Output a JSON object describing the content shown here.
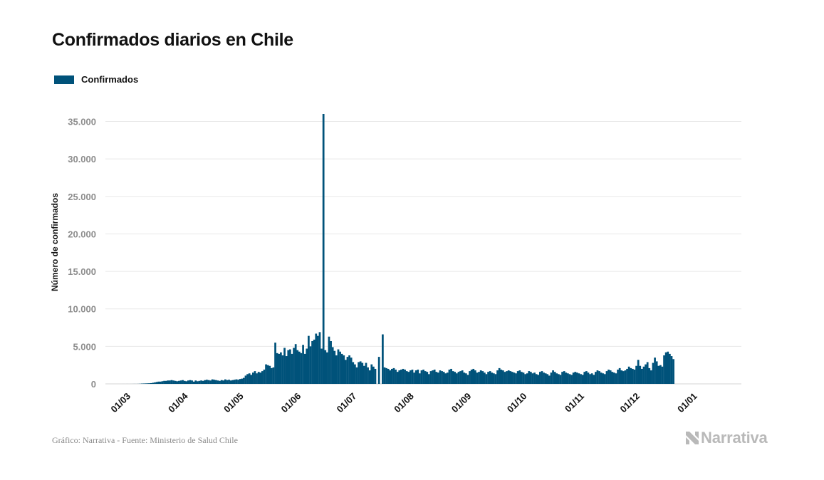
{
  "title": "Confirmados diarios en Chile",
  "source": "Gráfico: Narrativa - Fuente: Ministerio de Salud Chile",
  "brand": "Narrativa",
  "colors": {
    "bar": "#00527a",
    "grid": "#e8e8e8",
    "tick": "#8c8c8c",
    "brand": "#b9b9b9"
  },
  "chart_data": {
    "type": "bar",
    "title": "Confirmados diarios en Chile",
    "ylabel": "Número de confirmados",
    "xlabel": "",
    "ylim": [
      0,
      36000
    ],
    "yticks": [
      0,
      5000,
      10000,
      15000,
      20000,
      25000,
      30000,
      35000
    ],
    "ytick_labels": [
      "0",
      "5.000",
      "10.000",
      "15.000",
      "20.000",
      "25.000",
      "30.000",
      "35.000"
    ],
    "xticks": [
      {
        "label": "01/03",
        "day": 0
      },
      {
        "label": "01/04",
        "day": 31
      },
      {
        "label": "01/05",
        "day": 61
      },
      {
        "label": "01/06",
        "day": 92
      },
      {
        "label": "01/07",
        "day": 122
      },
      {
        "label": "01/08",
        "day": 153
      },
      {
        "label": "01/09",
        "day": 184
      },
      {
        "label": "01/10",
        "day": 214
      },
      {
        "label": "01/11",
        "day": 245
      },
      {
        "label": "01/12",
        "day": 275
      },
      {
        "label": "01/01",
        "day": 306
      }
    ],
    "grid": true,
    "legend": {
      "position": "top-left",
      "entries": [
        "Confirmados"
      ]
    },
    "series": [
      {
        "name": "Confirmados",
        "start_date": "2020-03-03",
        "values": [
          1,
          0,
          2,
          1,
          2,
          3,
          6,
          4,
          10,
          20,
          40,
          50,
          60,
          70,
          80,
          100,
          150,
          200,
          250,
          300,
          300,
          350,
          400,
          400,
          450,
          450,
          500,
          450,
          400,
          350,
          400,
          450,
          500,
          400,
          350,
          450,
          500,
          450,
          300,
          450,
          350,
          400,
          450,
          400,
          500,
          550,
          500,
          450,
          600,
          550,
          500,
          450,
          400,
          500,
          450,
          600,
          500,
          550,
          450,
          500,
          550,
          600,
          550,
          650,
          700,
          800,
          1100,
          1300,
          1400,
          1200,
          1500,
          1700,
          1400,
          1600,
          1500,
          1700,
          1900,
          2600,
          2500,
          2400,
          2100,
          2200,
          5500,
          4100,
          4000,
          4200,
          3800,
          4800,
          3700,
          4500,
          4600,
          4000,
          4800,
          5300,
          4500,
          4300,
          4100,
          5200,
          4000,
          4700,
          6400,
          5000,
          5700,
          5900,
          6700,
          6400,
          6900,
          4700,
          36000,
          4500,
          4200,
          6300,
          5700,
          4900,
          4400,
          3800,
          4600,
          4300,
          4000,
          3800,
          3200,
          3600,
          3800,
          3500,
          2900,
          2600,
          2200,
          2900,
          3000,
          2800,
          2400,
          2800,
          2200,
          1800,
          2600,
          2300,
          2000,
          0,
          3600,
          0,
          6600,
          2200,
          2100,
          2000,
          1800,
          2000,
          2100,
          1900,
          1600,
          1800,
          1900,
          2000,
          1900,
          1700,
          1600,
          1800,
          1900,
          1500,
          1800,
          1900,
          1400,
          1800,
          1900,
          1700,
          1600,
          1300,
          1700,
          1800,
          1900,
          1600,
          1500,
          1800,
          1700,
          1600,
          1400,
          1500,
          1900,
          2000,
          1700,
          1600,
          1400,
          1600,
          1700,
          1800,
          1500,
          1400,
          1200,
          1700,
          1900,
          2000,
          1800,
          1500,
          1600,
          1800,
          1700,
          1500,
          1300,
          1600,
          1700,
          1500,
          1400,
          1300,
          1800,
          2100,
          1900,
          1800,
          1600,
          1700,
          1800,
          1700,
          1600,
          1500,
          1400,
          1700,
          1800,
          1600,
          1500,
          1300,
          1400,
          1700,
          1600,
          1400,
          1500,
          1300,
          1200,
          1600,
          1700,
          1500,
          1400,
          1300,
          1100,
          1500,
          1800,
          1600,
          1400,
          1300,
          1200,
          1600,
          1700,
          1500,
          1400,
          1300,
          1200,
          1500,
          1600,
          1500,
          1400,
          1300,
          1200,
          1600,
          1700,
          1500,
          1300,
          1400,
          1200,
          1600,
          1800,
          1700,
          1500,
          1400,
          1300,
          1700,
          1900,
          1800,
          1600,
          1500,
          1400,
          1900,
          2100,
          1800,
          1700,
          1800,
          2000,
          2300,
          2100,
          2000,
          1900,
          2400,
          3200,
          2400,
          2000,
          2300,
          2600,
          2900,
          2100,
          1800,
          2800,
          3500,
          3000,
          2400,
          2500,
          2300,
          3800,
          4200,
          4300,
          4000,
          3700,
          3300
        ]
      }
    ]
  }
}
